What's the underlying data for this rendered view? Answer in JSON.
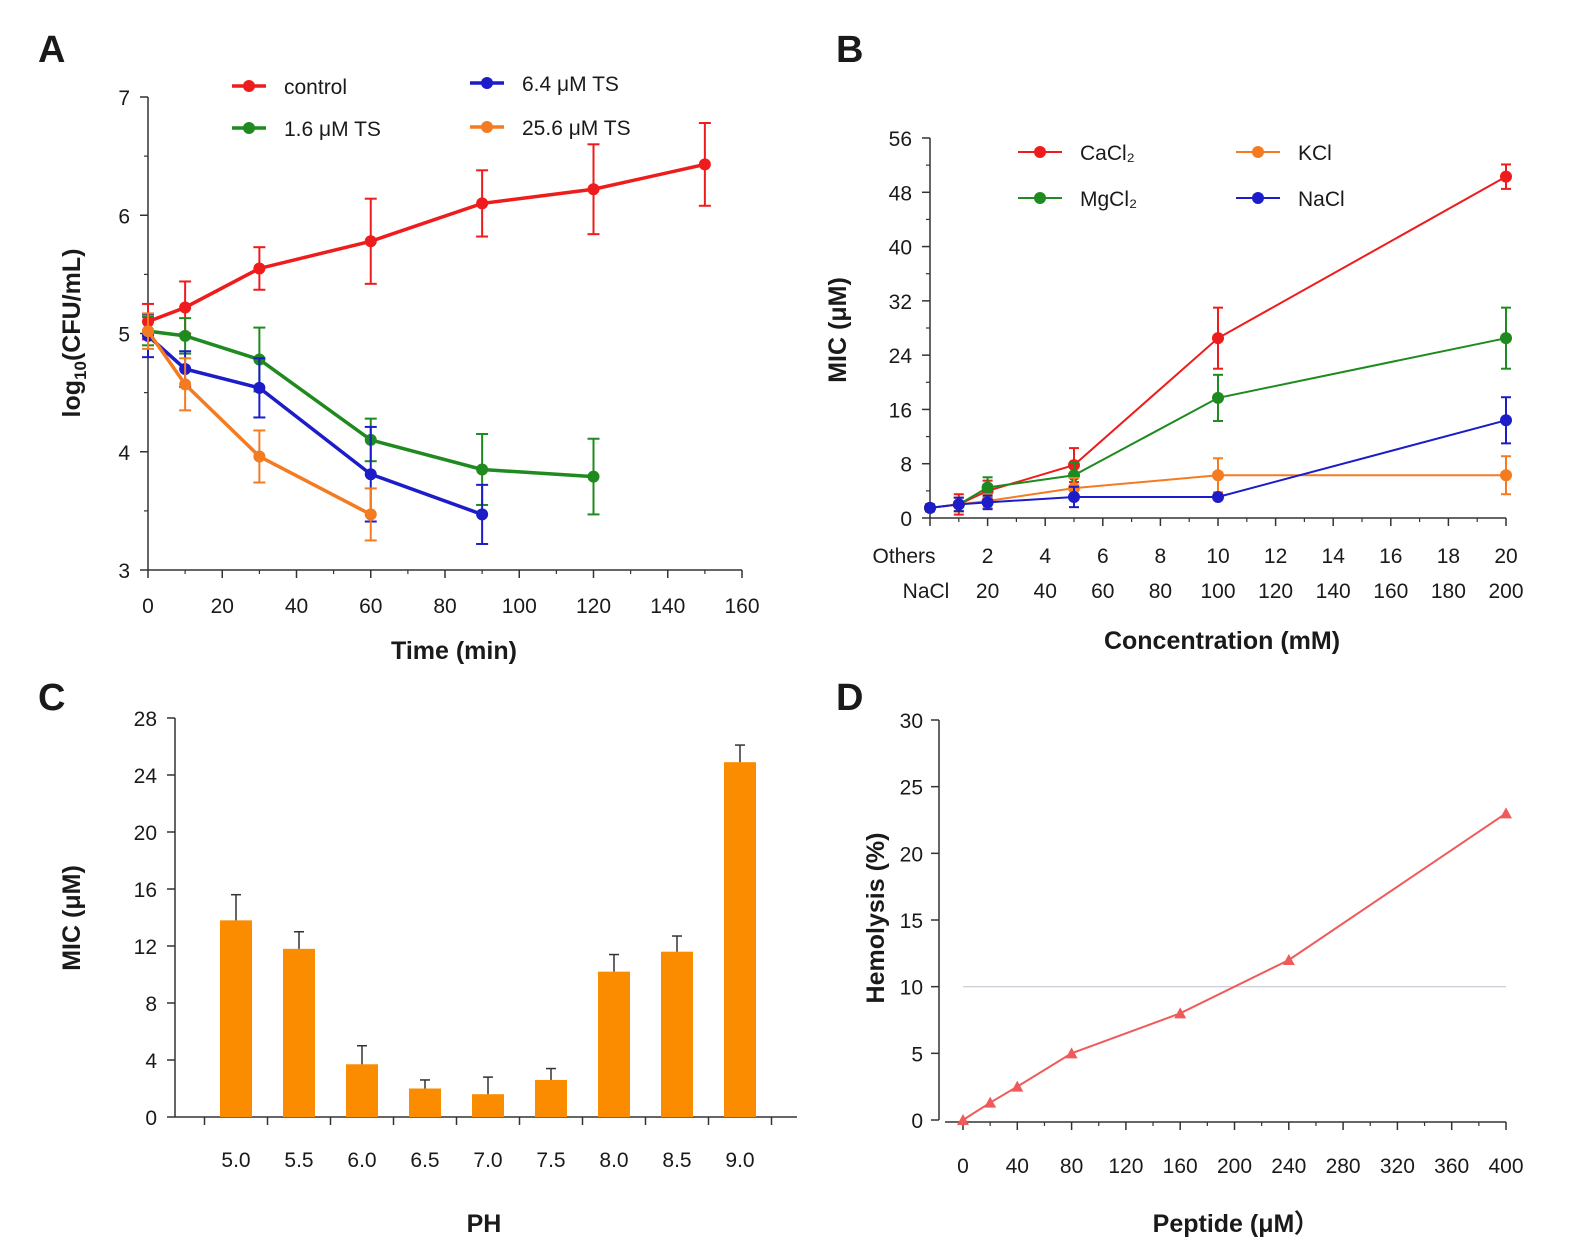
{
  "chart_data": [
    {
      "panel": "A",
      "type": "line",
      "xlabel": "Time (min)",
      "ylabel_main": "log",
      "ylabel_sub": "10",
      "ylabel_rest": "(CFU/mL)",
      "xlim": [
        0,
        160
      ],
      "ylim": [
        3,
        7
      ],
      "xticks": [
        0,
        20,
        40,
        60,
        80,
        100,
        120,
        140,
        160
      ],
      "yticks": [
        3,
        4,
        5,
        6,
        7
      ],
      "series": [
        {
          "name": "control",
          "color": "#ee1c1c",
          "x": [
            0,
            10,
            30,
            60,
            90,
            120,
            150
          ],
          "y": [
            5.1,
            5.22,
            5.55,
            5.78,
            6.1,
            6.22,
            6.43
          ],
          "err": [
            0.15,
            0.22,
            0.18,
            0.36,
            0.28,
            0.38,
            0.35
          ]
        },
        {
          "name": "1.6 μM TS",
          "color": "#1f8a1f",
          "x": [
            0,
            10,
            30,
            60,
            90,
            120
          ],
          "y": [
            5.02,
            4.98,
            4.78,
            4.1,
            3.85,
            3.79
          ],
          "err": [
            0.12,
            0.15,
            0.27,
            0.18,
            0.3,
            0.32
          ]
        },
        {
          "name": "6.4 μM TS",
          "color": "#1c1cc8",
          "x": [
            0,
            10,
            30,
            60,
            90
          ],
          "y": [
            4.98,
            4.7,
            4.54,
            3.81,
            3.47
          ],
          "err": [
            0.18,
            0.15,
            0.25,
            0.4,
            0.25
          ]
        },
        {
          "name": "25.6 μM TS",
          "color": "#f47b20",
          "x": [
            0,
            10,
            30,
            60
          ],
          "y": [
            5.02,
            4.57,
            3.96,
            3.47
          ],
          "err": [
            0.15,
            0.22,
            0.22,
            0.22
          ]
        }
      ]
    },
    {
      "panel": "B",
      "type": "line",
      "xlabel": "Concentration (mM)",
      "ylabel": "MIC (μM)",
      "xlim": [
        0,
        20
      ],
      "ylim": [
        0,
        56
      ],
      "yticks": [
        0,
        8,
        16,
        24,
        32,
        40,
        48,
        56
      ],
      "xticks_others": [
        "Others",
        "2",
        "4",
        "6",
        "8",
        "10",
        "12",
        "14",
        "16",
        "18",
        "20"
      ],
      "xticks_nacl": [
        "NaCl",
        "20",
        "40",
        "60",
        "80",
        "100",
        "120",
        "140",
        "160",
        "180",
        "200"
      ],
      "series": [
        {
          "name": "CaCl₂",
          "color": "#ee1c1c",
          "x": [
            0,
            1,
            2,
            5,
            10,
            20
          ],
          "y": [
            1.5,
            2.0,
            4.0,
            7.8,
            26.5,
            50.3
          ],
          "err": [
            0.5,
            1.5,
            1.5,
            2.5,
            4.5,
            1.8
          ]
        },
        {
          "name": "MgCl₂",
          "color": "#1f8a1f",
          "x": [
            0,
            1,
            2,
            5,
            10,
            20
          ],
          "y": [
            1.5,
            2.0,
            4.5,
            6.3,
            17.7,
            26.5
          ],
          "err": [
            0.5,
            1.0,
            1.5,
            1.8,
            3.4,
            4.5
          ]
        },
        {
          "name": "KCl",
          "color": "#f47b20",
          "x": [
            0,
            1,
            2,
            5,
            10,
            20
          ],
          "y": [
            1.5,
            2.0,
            2.5,
            4.4,
            6.3,
            6.3
          ],
          "err": [
            0.5,
            1.0,
            1.0,
            1.5,
            2.5,
            2.8
          ]
        },
        {
          "name": "NaCl",
          "color": "#1c1cc8",
          "x": [
            0,
            1,
            2,
            5,
            10,
            20
          ],
          "y": [
            1.5,
            2.0,
            2.3,
            3.1,
            3.1,
            14.4
          ],
          "err": [
            0.5,
            1.0,
            1.0,
            1.5,
            0.0,
            3.4
          ]
        }
      ],
      "legend": [
        "CaCl₂",
        "KCl",
        "MgCl₂",
        "NaCl"
      ]
    },
    {
      "panel": "C",
      "type": "bar",
      "xlabel": "PH",
      "ylabel": "MIC (μM)",
      "ylim": [
        0,
        28
      ],
      "yticks": [
        0,
        4,
        8,
        12,
        16,
        20,
        24,
        28
      ],
      "categories": [
        "5.0",
        "5.5",
        "6.0",
        "6.5",
        "7.0",
        "7.5",
        "8.0",
        "8.5",
        "9.0"
      ],
      "values": [
        13.8,
        11.8,
        3.7,
        2.0,
        1.6,
        2.6,
        10.2,
        11.6,
        24.9
      ],
      "err": [
        1.8,
        1.2,
        1.3,
        0.6,
        1.2,
        0.8,
        1.2,
        1.1,
        1.2
      ],
      "color": "#fb8c00"
    },
    {
      "panel": "D",
      "type": "line",
      "xlabel": "Peptide (μM）",
      "ylabel": "Hemolysis (%)",
      "xlim": [
        0,
        400
      ],
      "ylim": [
        0,
        30
      ],
      "xticks": [
        0,
        40,
        80,
        120,
        160,
        200,
        240,
        280,
        320,
        360,
        400
      ],
      "yticks": [
        0,
        5,
        10,
        15,
        20,
        25,
        30
      ],
      "reference_y": 10,
      "x": [
        0,
        20,
        40,
        80,
        160,
        240,
        400
      ],
      "y": [
        0,
        1.3,
        2.5,
        5.0,
        8.0,
        12.0,
        23.0
      ],
      "color": "#f05a5a"
    }
  ]
}
